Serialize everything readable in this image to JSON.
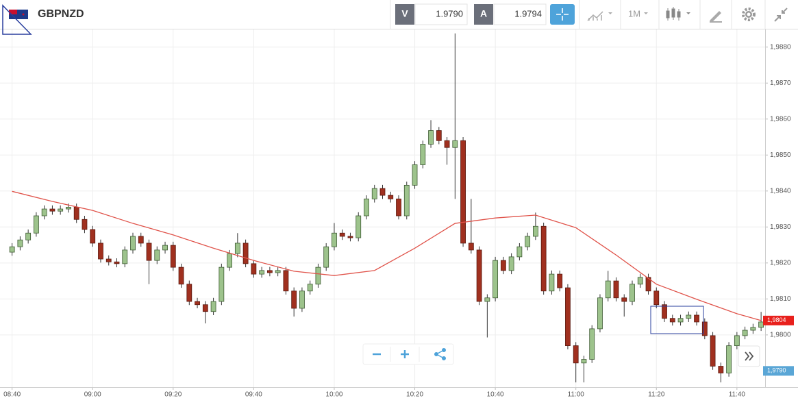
{
  "toolbar": {
    "bid_label": "V",
    "bid": "1.9790",
    "ask_label": "A",
    "ask": "1.9794",
    "timeframe": "1M"
  },
  "chart_data": {
    "type": "candlestick",
    "title": "GBPNZD",
    "x": [
      "08:40",
      "08:42",
      "08:44",
      "08:46",
      "08:48",
      "08:50",
      "08:52",
      "08:54",
      "08:56",
      "08:58",
      "09:00",
      "09:02",
      "09:04",
      "09:06",
      "09:08",
      "09:10",
      "09:12",
      "09:14",
      "09:16",
      "09:18",
      "09:20",
      "09:22",
      "09:24",
      "09:26",
      "09:28",
      "09:30",
      "09:32",
      "09:34",
      "09:36",
      "09:38",
      "09:40",
      "09:42",
      "09:44",
      "09:46",
      "09:48",
      "09:50",
      "09:52",
      "09:54",
      "09:56",
      "09:58",
      "10:00",
      "10:02",
      "10:04",
      "10:06",
      "10:08",
      "10:10",
      "10:12",
      "10:14",
      "10:16",
      "10:18",
      "10:20",
      "10:22",
      "10:24",
      "10:26",
      "10:28",
      "10:30",
      "10:32",
      "10:34",
      "10:36",
      "10:38",
      "10:40",
      "10:42",
      "10:44",
      "10:46",
      "10:48",
      "10:50",
      "10:52",
      "10:54",
      "10:56",
      "10:58",
      "11:00",
      "11:02",
      "11:04",
      "11:06",
      "11:08",
      "11:10",
      "11:12",
      "11:14",
      "11:16",
      "11:18",
      "11:20",
      "11:22",
      "11:24",
      "11:26",
      "11:28",
      "11:30",
      "11:32",
      "11:34",
      "11:36",
      "11:38",
      "11:40",
      "11:42",
      "11:44",
      "11:46"
    ],
    "open": [
      1.9823,
      1.98245,
      1.98264,
      1.98283,
      1.98331,
      1.9835,
      1.98344,
      1.9835,
      1.98355,
      1.98321,
      1.98293,
      1.98255,
      1.98211,
      1.98203,
      1.98198,
      1.98236,
      1.98274,
      1.98255,
      1.98207,
      1.98236,
      1.98249,
      1.98188,
      1.98141,
      1.98093,
      1.98084,
      1.98065,
      1.98093,
      1.98188,
      1.98226,
      1.98255,
      1.98198,
      1.98169,
      1.98179,
      1.98173,
      1.98179,
      1.98122,
      1.98074,
      1.98122,
      1.98141,
      1.98188,
      1.98245,
      1.98283,
      1.98274,
      1.9827,
      1.98331,
      1.98378,
      1.98407,
      1.98388,
      1.98378,
      1.98331,
      1.98416,
      1.98473,
      1.9853,
      1.98568,
      1.9854,
      1.98521,
      1.9854,
      1.98255,
      1.98236,
      1.98093,
      1.98103,
      1.98207,
      1.98179,
      1.98217,
      1.98245,
      1.98274,
      1.98302,
      1.98122,
      1.98169,
      1.98131,
      1.9797,
      1.97922,
      1.97932,
      1.98017,
      1.98103,
      1.9815,
      1.98103,
      1.98093,
      1.98141,
      1.9816,
      1.98122,
      1.98084,
      1.98046,
      1.98036,
      1.98046,
      1.98055,
      1.98036,
      1.97998,
      1.97913,
      1.97894,
      1.9797,
      1.97998,
      1.98013,
      1.98021
    ],
    "high": [
      1.98255,
      1.98274,
      1.98293,
      1.98341,
      1.9836,
      1.9836,
      1.9836,
      1.98365,
      1.98365,
      1.98331,
      1.98303,
      1.98265,
      1.98221,
      1.98213,
      1.98246,
      1.98284,
      1.98284,
      1.98265,
      1.98246,
      1.98259,
      1.98259,
      1.98198,
      1.98151,
      1.98103,
      1.98094,
      1.98103,
      1.98198,
      1.98236,
      1.98283,
      1.98265,
      1.98208,
      1.98189,
      1.98189,
      1.98189,
      1.98189,
      1.98132,
      1.98132,
      1.98151,
      1.98198,
      1.98255,
      1.98311,
      1.98293,
      1.98284,
      1.98341,
      1.98388,
      1.98417,
      1.98417,
      1.98398,
      1.98388,
      1.98426,
      1.98483,
      1.9854,
      1.98597,
      1.98578,
      1.9855,
      1.98838,
      1.9855,
      1.98378,
      1.98246,
      1.98113,
      1.98217,
      1.98217,
      1.98227,
      1.98255,
      1.98284,
      1.9834,
      1.98312,
      1.98179,
      1.98179,
      1.98141,
      1.9798,
      1.97942,
      1.98027,
      1.98113,
      1.98178,
      1.9816,
      1.98113,
      1.98151,
      1.9817,
      1.9817,
      1.98132,
      1.98094,
      1.98056,
      1.98056,
      1.98065,
      1.98065,
      1.98046,
      1.98008,
      1.97923,
      1.9798,
      1.98008,
      1.98023,
      1.98031,
      1.98064
    ],
    "low": [
      1.9822,
      1.98235,
      1.98254,
      1.98273,
      1.98321,
      1.98334,
      1.98334,
      1.9834,
      1.98311,
      1.98283,
      1.98245,
      1.98201,
      1.98193,
      1.98188,
      1.98188,
      1.98226,
      1.98245,
      1.98141,
      1.98197,
      1.98226,
      1.98178,
      1.98131,
      1.98083,
      1.98074,
      1.98032,
      1.98055,
      1.98083,
      1.98178,
      1.98216,
      1.98188,
      1.98159,
      1.98159,
      1.98163,
      1.98163,
      1.98112,
      1.98051,
      1.98064,
      1.98112,
      1.98131,
      1.98178,
      1.98235,
      1.98264,
      1.9826,
      1.9826,
      1.98321,
      1.98368,
      1.98378,
      1.98368,
      1.98321,
      1.98321,
      1.98406,
      1.98463,
      1.9852,
      1.9853,
      1.98473,
      1.98378,
      1.98245,
      1.98226,
      1.98083,
      1.97993,
      1.98093,
      1.98169,
      1.98169,
      1.98207,
      1.98235,
      1.98264,
      1.98112,
      1.98112,
      1.98121,
      1.9796,
      1.97868,
      1.97868,
      1.97922,
      1.98007,
      1.98093,
      1.98093,
      1.98051,
      1.98083,
      1.98131,
      1.98112,
      1.98074,
      1.98036,
      1.98026,
      1.98026,
      1.98036,
      1.98026,
      1.97988,
      1.97903,
      1.97868,
      1.97884,
      1.9796,
      1.97988,
      1.98003,
      1.98011
    ],
    "close": [
      1.98245,
      1.98264,
      1.98283,
      1.98331,
      1.9835,
      1.98344,
      1.9835,
      1.98355,
      1.98321,
      1.98293,
      1.98255,
      1.98211,
      1.98203,
      1.98198,
      1.98236,
      1.98274,
      1.98255,
      1.98207,
      1.98236,
      1.98249,
      1.98188,
      1.98141,
      1.98093,
      1.98084,
      1.98065,
      1.98093,
      1.98188,
      1.98226,
      1.98255,
      1.98198,
      1.98169,
      1.98179,
      1.98173,
      1.98179,
      1.98122,
      1.98074,
      1.98122,
      1.98141,
      1.98188,
      1.98245,
      1.98283,
      1.98274,
      1.9827,
      1.98331,
      1.98378,
      1.98407,
      1.98388,
      1.98378,
      1.98331,
      1.98416,
      1.98473,
      1.9853,
      1.98568,
      1.9854,
      1.98521,
      1.9854,
      1.98255,
      1.98236,
      1.98093,
      1.98103,
      1.98207,
      1.98179,
      1.98217,
      1.98245,
      1.98274,
      1.98302,
      1.98122,
      1.98169,
      1.98131,
      1.9797,
      1.97922,
      1.97932,
      1.98017,
      1.98103,
      1.9815,
      1.98103,
      1.98093,
      1.98141,
      1.9816,
      1.98122,
      1.98084,
      1.98046,
      1.98036,
      1.98046,
      1.98055,
      1.98036,
      1.97998,
      1.97913,
      1.97894,
      1.9797,
      1.97998,
      1.98013,
      1.98021,
      1.98036
    ],
    "up_color": "#9dc38c",
    "down_color": "#a0301f",
    "moving_average": {
      "color": "#e0534a",
      "x": [
        "08:40",
        "08:50",
        "09:00",
        "09:10",
        "09:20",
        "09:30",
        "09:40",
        "09:50",
        "10:00",
        "10:10",
        "10:20",
        "10:30",
        "10:40",
        "10:50",
        "11:00",
        "11:10",
        "11:20",
        "11:30",
        "11:40",
        "11:46"
      ],
      "values": [
        1.98399,
        1.98371,
        1.98346,
        1.9831,
        1.98278,
        1.98241,
        1.98207,
        1.98177,
        1.98165,
        1.98179,
        1.98241,
        1.9831,
        1.98325,
        1.98333,
        1.98298,
        1.98222,
        1.98141,
        1.98099,
        1.98059,
        1.9804
      ]
    },
    "xlim": [
      "08:37",
      "11:47"
    ],
    "xticks": [
      "08:40",
      "09:00",
      "09:20",
      "09:40",
      "10:00",
      "10:20",
      "10:40",
      "11:00",
      "11:20",
      "11:40"
    ],
    "ylim": [
      1.97855,
      1.98849
    ],
    "yticks": [
      {
        "value": 1.988,
        "label": "1,9880"
      },
      {
        "value": 1.987,
        "label": "1,9870"
      },
      {
        "value": 1.986,
        "label": "1,9860"
      },
      {
        "value": 1.985,
        "label": "1,9850"
      },
      {
        "value": 1.984,
        "label": "1,9840"
      },
      {
        "value": 1.983,
        "label": "1,9830"
      },
      {
        "value": 1.982,
        "label": "1,9820"
      },
      {
        "value": 1.981,
        "label": "1,9810"
      },
      {
        "value": 1.98,
        "label": "1,9800"
      }
    ],
    "grid": true,
    "price_labels": [
      {
        "value": 1.9804,
        "label": "1,9804",
        "color": "#e8201c"
      },
      {
        "value": 1.979,
        "label": "1,9790",
        "color": "#5aa6d6"
      }
    ]
  }
}
